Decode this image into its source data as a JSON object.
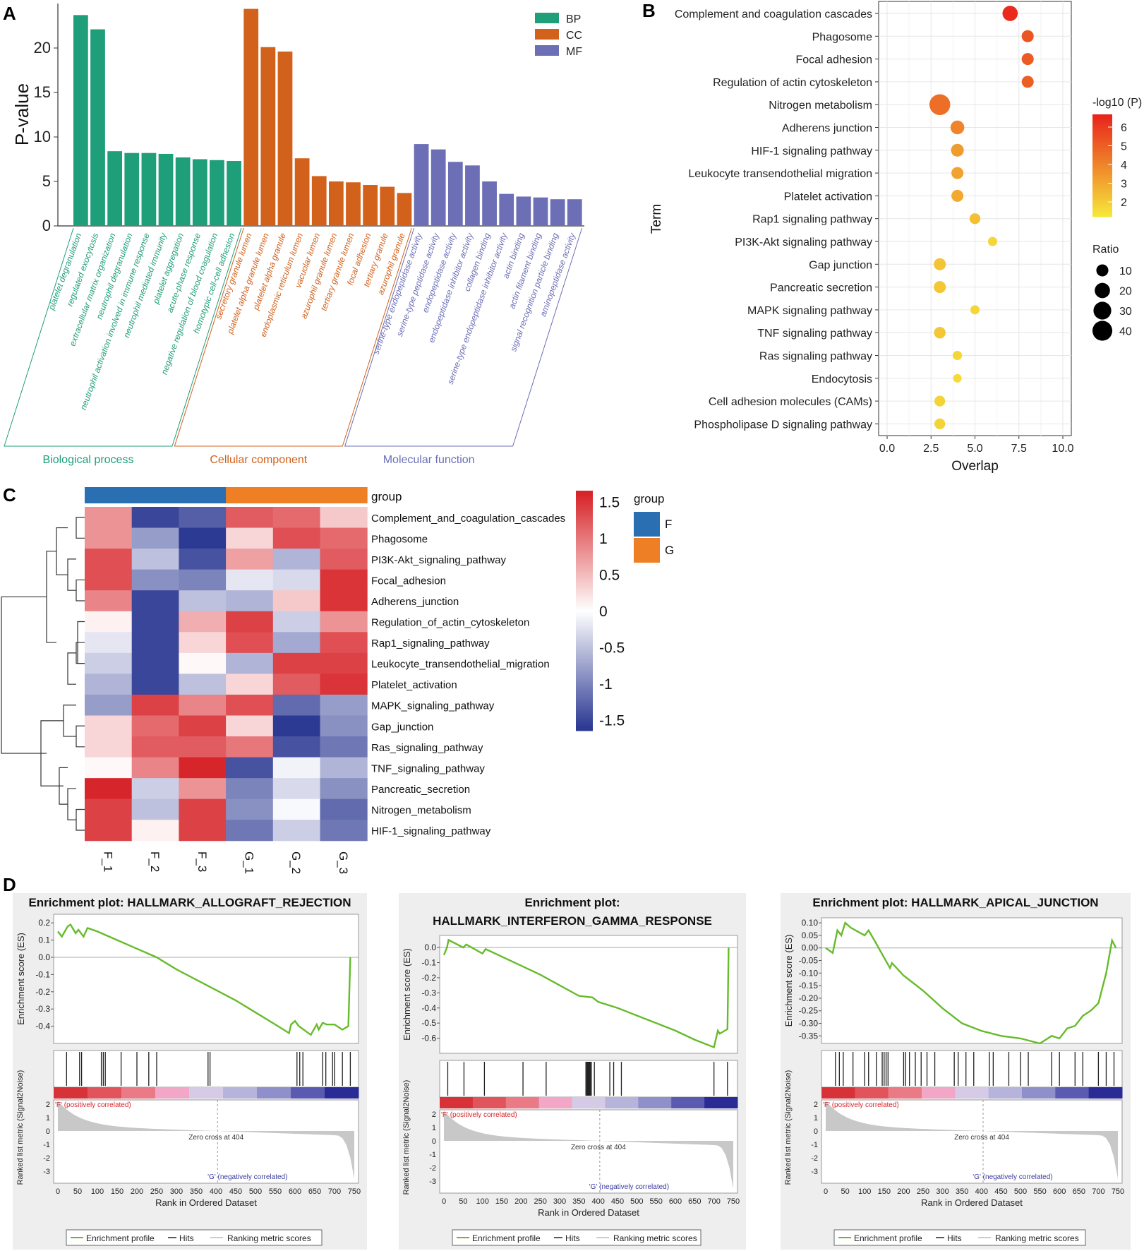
{
  "panel_labels": {
    "a": "A",
    "b": "B",
    "c": "C",
    "d": "D"
  },
  "colors": {
    "bp": "#1f9e7a",
    "cc": "#d2611c",
    "mf": "#6c6fb5",
    "grid": "#e6e6e6",
    "esLine": "#66bb2b",
    "heatHigh": "#d7262b",
    "heatMid": "#ffffff",
    "heatLow": "#2d3a93",
    "groupF": "#2a6fb1",
    "groupG": "#ef7f24",
    "bubbleHigh": "#e8231b",
    "bubbleLow": "#f6e93a"
  },
  "chart_data": [
    {
      "id": "A",
      "type": "bar",
      "title": "",
      "ylabel": "P-value",
      "ylim": [
        0,
        25
      ],
      "yticks": [
        0,
        5,
        10,
        15,
        20
      ],
      "legend": [
        {
          "key": "BP",
          "label": "BP"
        },
        {
          "key": "CC",
          "label": "CC"
        },
        {
          "key": "MF",
          "label": "MF"
        }
      ],
      "categories": [
        "platelet degranulation",
        "regulated exocytosis",
        "extracellular matrix organization",
        "neutrophil degranulation",
        "neutrophil activation involved in immune response",
        "neutrophil mediated immunity",
        "platelet aggregation",
        "acute-phase response",
        "negative regulation of blood coagulation",
        "homotypic cell-cell adhesion",
        "secretory granule lumen",
        "platelet alpha granule lumen",
        "platelet alpha granule",
        "endoplasmic reticulum lumen",
        "vacuolar lumen",
        "azurophil granule lumen",
        "tertiary granule lumen",
        "focal adhesion",
        "tertiary granule",
        "azurophil granule",
        "serine-type endopeptidase activity",
        "serine-type peptidase activity",
        "endopeptidase activity",
        "endopeptidase inhibitor activity",
        "collagen binding",
        "serine-type endopeptidase inhibitor activity",
        "actin binding",
        "actin filament binding",
        "signal recognition particle binding",
        "aminopeptidase activity"
      ],
      "groups": [
        "BP",
        "BP",
        "BP",
        "BP",
        "BP",
        "BP",
        "BP",
        "BP",
        "BP",
        "BP",
        "CC",
        "CC",
        "CC",
        "CC",
        "CC",
        "CC",
        "CC",
        "CC",
        "CC",
        "CC",
        "MF",
        "MF",
        "MF",
        "MF",
        "MF",
        "MF",
        "MF",
        "MF",
        "MF",
        "MF"
      ],
      "values": [
        23.7,
        22.1,
        8.4,
        8.2,
        8.2,
        8.1,
        7.7,
        7.5,
        7.4,
        7.3,
        24.4,
        20.1,
        19.6,
        7.6,
        5.6,
        5.0,
        4.9,
        4.6,
        4.4,
        3.7,
        9.2,
        8.6,
        7.2,
        6.8,
        5.0,
        3.6,
        3.3,
        3.2,
        3.0,
        3.0
      ],
      "group_labels": [
        {
          "key": "BP",
          "label": "Biological process"
        },
        {
          "key": "CC",
          "label": "Cellular component"
        },
        {
          "key": "MF",
          "label": "Molecular function"
        }
      ]
    },
    {
      "id": "B",
      "type": "scatter",
      "xlabel": "Overlap",
      "ylabel": "Term",
      "xlim": [
        0,
        10
      ],
      "xticks": [
        "0.0",
        "2.5",
        "5.0",
        "7.5",
        "10.0"
      ],
      "terms": [
        "Complement and coagulation cascades",
        "Phagosome",
        "Focal adhesion",
        "Regulation of actin cytoskeleton",
        "Nitrogen metabolism",
        "Adherens junction",
        "HIF-1 signaling pathway",
        "Leukocyte transendothelial migration",
        "Platelet activation",
        "Rap1 signaling pathway",
        "PI3K-Akt signaling pathway",
        "Gap junction",
        "Pancreatic secretion",
        "MAPK signaling pathway",
        "TNF signaling pathway",
        "Ras signaling pathway",
        "Endocytosis",
        "Cell adhesion molecules (CAMs)",
        "Phospholipase D signaling pathway"
      ],
      "overlap": [
        7,
        8,
        8,
        8,
        3,
        4,
        4,
        4,
        4,
        5,
        6,
        3,
        3,
        5,
        3,
        4,
        4,
        3,
        3
      ],
      "neglog10p": [
        6.6,
        5.5,
        5.3,
        5.2,
        4.8,
        4.2,
        3.6,
        3.4,
        3.2,
        2.6,
        2.0,
        2.5,
        2.4,
        2.0,
        2.4,
        2.0,
        1.9,
        2.1,
        2.1
      ],
      "ratio": [
        20,
        10,
        10,
        10,
        45,
        15,
        12,
        10,
        10,
        7,
        4,
        10,
        10,
        4,
        9,
        4,
        3,
        7,
        7
      ],
      "color_legend_title": "-log10 (P)",
      "color_ticks": [
        "6",
        "5",
        "4",
        "3",
        "2"
      ],
      "size_legend_title": "Ratio",
      "size_ticks": [
        "10",
        "20",
        "30",
        "40"
      ]
    },
    {
      "id": "C",
      "type": "heatmap",
      "columns": [
        "F_1",
        "F_2",
        "F_3",
        "G_1",
        "G_2",
        "G_3"
      ],
      "column_groups": [
        "F",
        "F",
        "F",
        "G",
        "G",
        "G"
      ],
      "rows": [
        "Complement_and_coagulation_cascades",
        "Phagosome",
        "PI3K-Akt_signaling_pathway",
        "Focal_adhesion",
        "Adherens_junction",
        "Regulation_of_actin_cytoskeleton",
        "Rap1_signaling_pathway",
        "Leukocyte_transendothelial_migration",
        "Platelet_activation",
        "MAPK_signaling_pathway",
        "Gap_junction",
        "Ras_signaling_pathway",
        "TNF_signaling_pathway",
        "Pancreatic_secretion",
        "Nitrogen_metabolism",
        "HIF-1_signaling_pathway"
      ],
      "values": [
        [
          0.8,
          -1.5,
          -1.3,
          1.2,
          1.1,
          0.4
        ],
        [
          0.8,
          -0.8,
          -1.6,
          0.3,
          1.3,
          1.1
        ],
        [
          1.3,
          -0.5,
          -1.4,
          0.7,
          -0.6,
          1.2
        ],
        [
          1.3,
          -0.9,
          -1.0,
          -0.2,
          -0.3,
          1.5
        ],
        [
          0.9,
          -1.5,
          -0.5,
          -0.6,
          0.4,
          1.5
        ],
        [
          0.1,
          -1.5,
          0.6,
          1.4,
          -0.4,
          0.8
        ],
        [
          -0.2,
          -1.5,
          0.3,
          1.3,
          -0.7,
          1.3
        ],
        [
          -0.4,
          -1.5,
          0.05,
          -0.6,
          1.4,
          1.4
        ],
        [
          -0.6,
          -1.5,
          -0.5,
          0.3,
          1.2,
          1.5
        ],
        [
          -0.8,
          1.4,
          0.9,
          1.3,
          -1.2,
          -0.8
        ],
        [
          0.3,
          1.1,
          1.4,
          0.3,
          -1.6,
          -0.9
        ],
        [
          0.3,
          1.2,
          1.2,
          1.0,
          -1.4,
          -1.1
        ],
        [
          0.05,
          0.9,
          1.6,
          -1.4,
          -0.1,
          -0.6
        ],
        [
          1.6,
          -0.4,
          0.8,
          -1.0,
          -0.3,
          -0.9
        ],
        [
          1.4,
          -0.5,
          1.4,
          -0.9,
          -0.05,
          -1.2
        ],
        [
          1.4,
          0.1,
          1.4,
          -1.1,
          -0.4,
          -1.1
        ]
      ],
      "group_title": "group",
      "legend_group_title": "group",
      "legend_groups": [
        "F",
        "G"
      ],
      "scale_ticks": [
        "1.5",
        "1",
        "0.5",
        "0",
        "-0.5",
        "-1",
        "-1.5"
      ],
      "scale_values": [
        1.5,
        1,
        0.5,
        0,
        -0.5,
        -1,
        -1.5
      ]
    },
    {
      "id": "D1",
      "type": "line",
      "title_lines": [
        "Enrichment plot: HALLMARK_ALLOGRAFT_REJECTION"
      ],
      "ylabel": "Enrichment score (ES)",
      "ylim": [
        -0.5,
        0.25
      ],
      "yticks": [
        "0.2",
        "0.1",
        "0.0",
        "-0.1",
        "-0.2",
        "-0.3",
        "-0.4"
      ],
      "ytick_values": [
        0.2,
        0.1,
        0.0,
        -0.1,
        -0.2,
        -0.3,
        -0.4
      ],
      "x": [
        0,
        10,
        25,
        32,
        45,
        52,
        65,
        75,
        100,
        150,
        200,
        250,
        300,
        350,
        400,
        450,
        500,
        550,
        585,
        590,
        600,
        610,
        640,
        655,
        660,
        670,
        680,
        700,
        720,
        735,
        740
      ],
      "y": [
        0.15,
        0.12,
        0.18,
        0.19,
        0.14,
        0.16,
        0.12,
        0.17,
        0.15,
        0.1,
        0.05,
        0.0,
        -0.07,
        -0.13,
        -0.19,
        -0.25,
        -0.32,
        -0.39,
        -0.44,
        -0.39,
        -0.37,
        -0.4,
        -0.45,
        -0.39,
        -0.42,
        -0.38,
        -0.39,
        -0.39,
        -0.42,
        -0.4,
        0.0
      ],
      "hits": [
        22,
        55,
        60,
        110,
        115,
        120,
        160,
        200,
        230,
        250,
        380,
        385,
        605,
        612,
        620,
        670,
        678,
        695,
        700,
        720,
        740
      ],
      "metric_ylabel": "Ranked list metric (Signal2Noise)",
      "metric_yticks": [
        "2",
        "1",
        "0",
        "-1",
        "-2",
        "-3"
      ],
      "pos_label": "'F' (positively correlated)",
      "neg_label": "'G' (negatively correlated)",
      "zero_cross": "Zero cross at 404",
      "xlabel": "Rank in Ordered Dataset",
      "xticks": [
        "0",
        "50",
        "100",
        "150",
        "200",
        "250",
        "300",
        "350",
        "400",
        "450",
        "500",
        "550",
        "600",
        "650",
        "700",
        "750"
      ],
      "legend": [
        "Enrichment profile",
        "Hits",
        "Ranking metric scores"
      ]
    },
    {
      "id": "D2",
      "type": "line",
      "title_lines": [
        "Enrichment plot:",
        "HALLMARK_INTERFERON_GAMMA_RESPONSE"
      ],
      "ylabel": "Enrichment score (ES)",
      "ylim": [
        -0.7,
        0.08
      ],
      "yticks": [
        "0.0",
        "-0.1",
        "-0.2",
        "-0.3",
        "-0.4",
        "-0.5",
        "-0.6"
      ],
      "ytick_values": [
        0.0,
        -0.1,
        -0.2,
        -0.3,
        -0.4,
        -0.5,
        -0.6
      ],
      "x": [
        0,
        8,
        12,
        50,
        58,
        100,
        108,
        200,
        250,
        300,
        350,
        385,
        400,
        450,
        500,
        550,
        600,
        650,
        700,
        710,
        715,
        735,
        738
      ],
      "y": [
        -0.05,
        0.0,
        0.05,
        0.0,
        0.02,
        -0.04,
        -0.01,
        -0.12,
        -0.18,
        -0.25,
        -0.32,
        -0.33,
        -0.36,
        -0.4,
        -0.45,
        -0.5,
        -0.55,
        -0.61,
        -0.66,
        -0.55,
        -0.57,
        -0.54,
        0.0
      ],
      "hits": [
        10,
        52,
        105,
        205,
        265,
        368,
        370,
        372,
        374,
        376,
        378,
        380,
        382,
        390,
        430,
        440,
        460,
        700,
        735
      ],
      "metric_ylabel": "Ranked list metric (Signal2Noise)",
      "metric_yticks": [
        "2",
        "1",
        "0",
        "-1",
        "-2",
        "-3"
      ],
      "pos_label": "'F' (positively correlated)",
      "neg_label": "'G' (negatively correlated)",
      "zero_cross": "Zero cross at 404",
      "xlabel": "Rank in Ordered Dataset",
      "xticks": [
        "0",
        "50",
        "100",
        "150",
        "200",
        "250",
        "300",
        "350",
        "400",
        "450",
        "500",
        "550",
        "600",
        "650",
        "700",
        "750"
      ],
      "legend": [
        "Enrichment profile",
        "Hits",
        "Ranking metric scores"
      ]
    },
    {
      "id": "D3",
      "type": "line",
      "title_lines": [
        "Enrichment plot: HALLMARK_APICAL_JUNCTION"
      ],
      "ylabel": "Enrichment score (ES)",
      "ylim": [
        -0.38,
        0.12
      ],
      "yticks": [
        "0.10",
        "0.05",
        "0.00",
        "-0.05",
        "-0.10",
        "-0.15",
        "-0.20",
        "-0.25",
        "-0.30",
        "-0.35"
      ],
      "ytick_values": [
        0.1,
        0.05,
        0.0,
        -0.05,
        -0.1,
        -0.15,
        -0.2,
        -0.25,
        -0.3,
        -0.35
      ],
      "x": [
        0,
        18,
        30,
        40,
        50,
        65,
        100,
        110,
        125,
        165,
        170,
        200,
        250,
        300,
        350,
        400,
        450,
        500,
        550,
        580,
        600,
        620,
        640,
        650,
        660,
        680,
        700,
        720,
        735,
        745
      ],
      "y": [
        0.0,
        -0.02,
        0.07,
        0.05,
        0.1,
        0.08,
        0.05,
        0.07,
        0.03,
        -0.08,
        -0.06,
        -0.11,
        -0.17,
        -0.24,
        -0.3,
        -0.33,
        -0.35,
        -0.36,
        -0.38,
        -0.35,
        -0.36,
        -0.32,
        -0.31,
        -0.29,
        -0.27,
        -0.25,
        -0.22,
        -0.1,
        0.03,
        0.0
      ],
      "hits": [
        25,
        35,
        45,
        70,
        100,
        110,
        130,
        145,
        150,
        155,
        160,
        200,
        205,
        215,
        230,
        245,
        260,
        280,
        330,
        340,
        360,
        380,
        420,
        430,
        470,
        500,
        520,
        580,
        600,
        640,
        660,
        700,
        720,
        740
      ],
      "metric_ylabel": "Ranked list metric (Signal2Noise)",
      "metric_yticks": [
        "2",
        "1",
        "0",
        "-1",
        "-2",
        "-3"
      ],
      "pos_label": "'F' (positively correlated)",
      "neg_label": "'G' (negatively correlated)",
      "zero_cross": "Zero cross at 404",
      "xlabel": "Rank in Ordered Dataset",
      "xticks": [
        "0",
        "50",
        "100",
        "150",
        "200",
        "250",
        "300",
        "350",
        "400",
        "450",
        "500",
        "550",
        "600",
        "650",
        "700",
        "750"
      ],
      "legend": [
        "Enrichment profile",
        "Hits",
        "Ranking metric scores"
      ]
    }
  ]
}
